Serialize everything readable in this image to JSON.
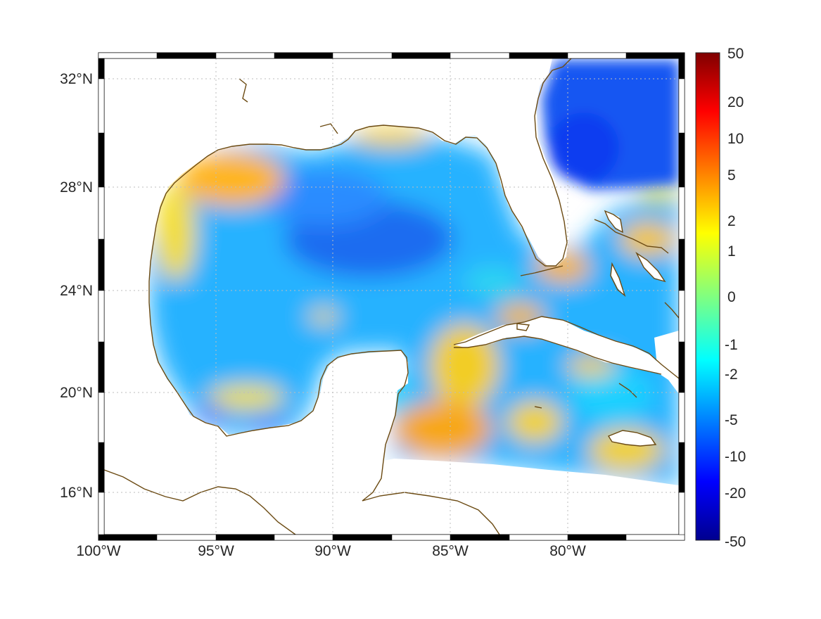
{
  "map": {
    "lon_ticks": [
      "100°W",
      "95°W",
      "90°W",
      "85°W",
      "80°W"
    ],
    "lat_ticks": [
      "32°N",
      "28°N",
      "24°N",
      "20°N",
      "16°N"
    ],
    "lon_range": [
      -100,
      -75.1
    ],
    "lat_range": [
      14.2,
      33
    ],
    "grid": "dotted",
    "frame": "black-white-alternating",
    "coastline_color": "#6b4a12",
    "land_color": "#ffffff",
    "colormap": "jet",
    "colorbar": {
      "labels": [
        "50",
        "20",
        "10",
        "5",
        "2",
        "1",
        "0",
        "-1",
        "-2",
        "-5",
        "-10",
        "-20",
        "-50"
      ]
    }
  }
}
